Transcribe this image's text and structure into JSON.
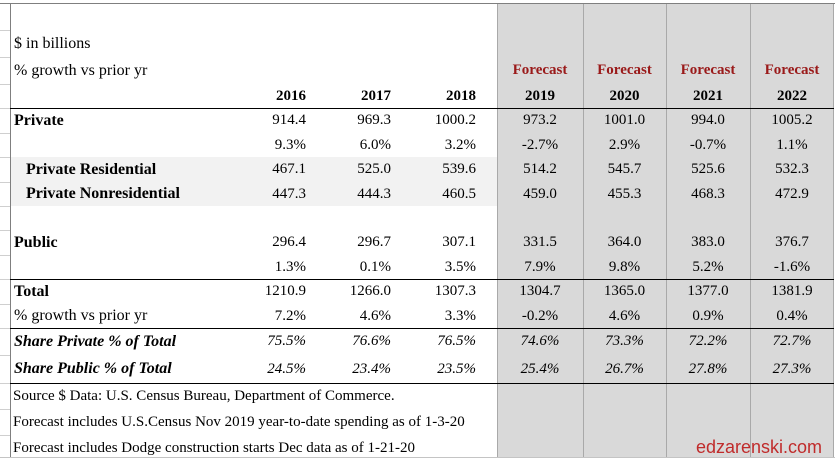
{
  "header": {
    "unit_note": "$ in billions",
    "growth_note": "% growth vs prior yr",
    "forecast_label": "Forecast"
  },
  "chart_data": {
    "type": "table",
    "unit_note": "$ in billions",
    "columns": [
      "2016",
      "2017",
      "2018",
      "2019",
      "2020",
      "2021",
      "2022"
    ],
    "forecast_columns": [
      "2019",
      "2020",
      "2021",
      "2022"
    ],
    "rows": [
      {
        "label": "Private",
        "values": [
          "914.4",
          "969.3",
          "1000.2",
          "973.2",
          "1001.0",
          "994.0",
          "1005.2"
        ]
      },
      {
        "label": "",
        "values": [
          "9.3%",
          "6.0%",
          "3.2%",
          "-2.7%",
          "2.9%",
          "-0.7%",
          "1.1%"
        ]
      },
      {
        "label": "Private Residential",
        "values": [
          "467.1",
          "525.0",
          "539.6",
          "514.2",
          "545.7",
          "525.6",
          "532.3"
        ]
      },
      {
        "label": "Private Nonresidential",
        "values": [
          "447.3",
          "444.3",
          "460.5",
          "459.0",
          "455.3",
          "468.3",
          "472.9"
        ]
      },
      {
        "label": "Public",
        "values": [
          "296.4",
          "296.7",
          "307.1",
          "331.5",
          "364.0",
          "383.0",
          "376.7"
        ]
      },
      {
        "label": "",
        "values": [
          "1.3%",
          "0.1%",
          "3.5%",
          "7.9%",
          "9.8%",
          "5.2%",
          "-1.6%"
        ]
      },
      {
        "label": "Total",
        "values": [
          "1210.9",
          "1266.0",
          "1307.3",
          "1304.7",
          "1365.0",
          "1377.0",
          "1381.9"
        ]
      },
      {
        "label": "% growth vs prior yr",
        "values": [
          "7.2%",
          "4.6%",
          "3.3%",
          "-0.2%",
          "4.6%",
          "0.9%",
          "0.4%"
        ]
      },
      {
        "label": "Share Private % of Total",
        "values": [
          "75.5%",
          "76.6%",
          "76.5%",
          "74.6%",
          "73.3%",
          "72.2%",
          "72.7%"
        ]
      },
      {
        "label": "Share Public % of Total",
        "values": [
          "24.5%",
          "23.4%",
          "23.5%",
          "25.4%",
          "26.7%",
          "27.8%",
          "27.3%"
        ]
      }
    ]
  },
  "footer": {
    "source_lines": [
      "Source $ Data: U.S. Census Bureau, Department of Commerce.",
      "Forecast includes U.S.Census Nov 2019 year-to-date spending as of 1-3-20",
      "Forecast includes Dodge construction starts Dec data as of 1-21-20"
    ],
    "website": "edzarenski.com"
  },
  "colors": {
    "forecast-bg": "#d9d9d9",
    "band-bg": "#f2f2f2",
    "forecast-red": "#9a1a1a",
    "site-red": "#c02b2b",
    "grid-line": "#a9a9a9",
    "rule-line": "#000000"
  }
}
